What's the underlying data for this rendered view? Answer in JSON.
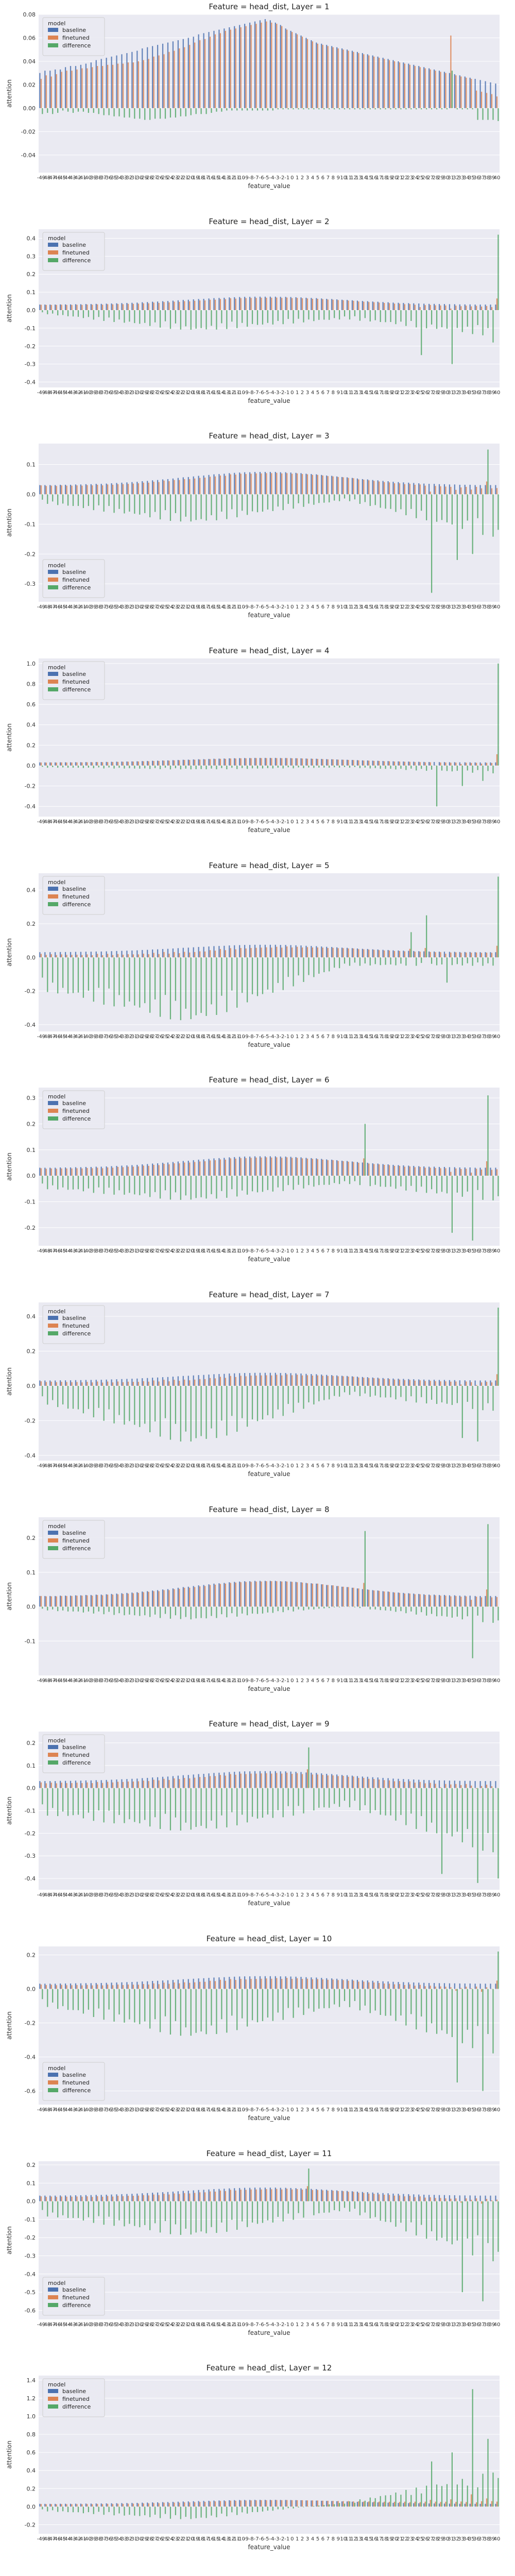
{
  "colors": {
    "baseline": "#4c72b0",
    "finetuned": "#dd8452",
    "difference": "#55a868",
    "plot_bg": "#eaeaf2",
    "grid": "#ffffff"
  },
  "legend_title": "model",
  "legend_items": [
    "baseline",
    "finetuned",
    "difference"
  ],
  "xlabel": "feature_value",
  "ylabel": "attention",
  "chart_data": [
    {
      "type": "bar",
      "title": "Feature = head_dist, Layer = 1",
      "xlabel": "feature_value",
      "ylabel": "attention",
      "legend": "top-left",
      "grid": true,
      "x_range": [
        -49,
        40
      ],
      "ylim": [
        -0.055,
        0.08
      ],
      "yticks": [
        -0.04,
        -0.02,
        0.0,
        0.02,
        0.04,
        0.06,
        0.08
      ],
      "series": [
        {
          "name": "baseline",
          "values": [
            0.03,
            0.032,
            0.032,
            0.033,
            0.033,
            0.035,
            0.036,
            0.036,
            0.037,
            0.038,
            0.039,
            0.041,
            0.042,
            0.043,
            0.044,
            0.045,
            0.046,
            0.047,
            0.048,
            0.049,
            0.051,
            0.052,
            0.053,
            0.054,
            0.055,
            0.056,
            0.057,
            0.058,
            0.059,
            0.06,
            0.061,
            0.063,
            0.064,
            0.065,
            0.066,
            0.067,
            0.068,
            0.069,
            0.07,
            0.071,
            0.072,
            0.073,
            0.074,
            0.075,
            0.076,
            0.075,
            0.073,
            0.071,
            0.068,
            0.066,
            0.064,
            0.062,
            0.06,
            0.058,
            0.056,
            0.055,
            0.054,
            0.053,
            0.052,
            0.051,
            0.05,
            0.049,
            0.048,
            0.047,
            0.046,
            0.045,
            0.044,
            0.043,
            0.042,
            0.041,
            0.04,
            0.039,
            0.038,
            0.037,
            0.036,
            0.035,
            0.034,
            0.033,
            0.032,
            0.031,
            0.03,
            0.029,
            0.028,
            0.027,
            0.026,
            0.025,
            0.024,
            0.023,
            0.022,
            0.021
          ]
        },
        {
          "name": "finetuned",
          "values": [
            0.025,
            0.028,
            0.027,
            0.029,
            0.031,
            0.032,
            0.032,
            0.033,
            0.034,
            0.034,
            0.035,
            0.036,
            0.036,
            0.037,
            0.037,
            0.038,
            0.038,
            0.039,
            0.039,
            0.04,
            0.041,
            0.042,
            0.044,
            0.045,
            0.046,
            0.048,
            0.049,
            0.051,
            0.052,
            0.054,
            0.056,
            0.058,
            0.059,
            0.061,
            0.063,
            0.064,
            0.066,
            0.067,
            0.068,
            0.069,
            0.07,
            0.071,
            0.072,
            0.073,
            0.074,
            0.073,
            0.072,
            0.07,
            0.067,
            0.065,
            0.063,
            0.061,
            0.059,
            0.057,
            0.055,
            0.054,
            0.053,
            0.052,
            0.051,
            0.05,
            0.049,
            0.048,
            0.047,
            0.046,
            0.045,
            0.044,
            0.043,
            0.042,
            0.041,
            0.04,
            0.039,
            0.038,
            0.037,
            0.036,
            0.035,
            0.034,
            0.033,
            0.032,
            0.031,
            0.03,
            0.062,
            0.028,
            0.027,
            0.026,
            0.025,
            0.015,
            0.014,
            0.013,
            0.012,
            0.01
          ]
        },
        {
          "name": "difference",
          "values": [
            -0.005,
            -0.004,
            -0.005,
            -0.004,
            -0.002,
            -0.003,
            -0.004,
            -0.003,
            -0.003,
            -0.004,
            -0.004,
            -0.005,
            -0.006,
            -0.006,
            -0.007,
            -0.007,
            -0.008,
            -0.008,
            -0.009,
            -0.009,
            -0.01,
            -0.01,
            -0.009,
            -0.009,
            -0.009,
            -0.008,
            -0.008,
            -0.007,
            -0.007,
            -0.006,
            -0.005,
            -0.005,
            -0.005,
            -0.004,
            -0.003,
            -0.003,
            -0.002,
            -0.002,
            -0.002,
            -0.002,
            -0.002,
            -0.002,
            -0.002,
            -0.002,
            -0.002,
            -0.002,
            -0.001,
            -0.001,
            -0.001,
            -0.001,
            -0.001,
            -0.001,
            -0.001,
            -0.001,
            -0.001,
            -0.001,
            -0.001,
            -0.001,
            -0.001,
            -0.001,
            -0.001,
            -0.001,
            -0.001,
            -0.001,
            -0.001,
            -0.001,
            -0.001,
            -0.001,
            -0.001,
            -0.001,
            -0.001,
            -0.001,
            -0.001,
            -0.001,
            -0.001,
            -0.001,
            -0.001,
            -0.001,
            -0.001,
            -0.001,
            0.032,
            -0.001,
            -0.001,
            -0.001,
            -0.001,
            -0.01,
            -0.01,
            -0.01,
            -0.01,
            -0.011
          ]
        }
      ]
    },
    {
      "type": "bar",
      "title": "Feature = head_dist, Layer = 2",
      "xlabel": "feature_value",
      "ylabel": "attention",
      "legend": "top-left",
      "grid": true,
      "x_range": [
        -49,
        40
      ],
      "ylim": [
        -0.43,
        0.45
      ],
      "yticks": [
        -0.4,
        -0.3,
        -0.2,
        -0.1,
        0.0,
        0.1,
        0.2,
        0.3,
        0.4
      ],
      "diff_profile": {
        "base": [
          -0.02,
          -0.12,
          -0.05,
          -0.15
        ],
        "spikes": [
          [
            74,
            -0.25
          ],
          [
            80,
            -0.3
          ],
          [
            89,
            0.42
          ],
          [
            88,
            -0.18
          ]
        ]
      }
    },
    {
      "type": "bar",
      "title": "Feature = head_dist, Layer = 3",
      "xlabel": "feature_value",
      "ylabel": "attention",
      "legend": "bottom-left",
      "grid": true,
      "x_range": [
        -49,
        40
      ],
      "ylim": [
        -0.36,
        0.17
      ],
      "yticks": [
        -0.3,
        -0.2,
        -0.1,
        0.0,
        0.1
      ],
      "diff_profile": {
        "base": [
          -0.03,
          -0.1,
          -0.02,
          -0.15
        ],
        "spikes": [
          [
            76,
            -0.33
          ],
          [
            81,
            -0.22
          ],
          [
            87,
            0.15
          ],
          [
            84,
            -0.2
          ]
        ]
      }
    },
    {
      "type": "bar",
      "title": "Feature = head_dist, Layer = 4",
      "xlabel": "feature_value",
      "ylabel": "attention",
      "legend": "top-left",
      "grid": true,
      "x_range": [
        -49,
        40
      ],
      "ylim": [
        -0.5,
        1.05
      ],
      "yticks": [
        -0.4,
        -0.2,
        0.0,
        0.2,
        0.4,
        0.6,
        0.8,
        1.0
      ],
      "diff_profile": {
        "base": [
          -0.02,
          -0.04,
          -0.02,
          -0.08
        ],
        "spikes": [
          [
            77,
            -0.4
          ],
          [
            82,
            -0.2
          ],
          [
            89,
            1.0
          ],
          [
            86,
            -0.15
          ]
        ]
      }
    },
    {
      "type": "bar",
      "title": "Feature = head_dist, Layer = 5",
      "xlabel": "feature_value",
      "ylabel": "attention",
      "legend": "top-left",
      "grid": true,
      "x_range": [
        -49,
        40
      ],
      "ylim": [
        -0.44,
        0.5
      ],
      "yticks": [
        -0.4,
        -0.2,
        0.0,
        0.2,
        0.4
      ],
      "diff_profile": {
        "base": [
          -0.2,
          -0.4,
          -0.05,
          -0.05
        ],
        "spikes": [
          [
            72,
            0.15
          ],
          [
            75,
            0.25
          ],
          [
            79,
            -0.15
          ],
          [
            89,
            0.48
          ]
        ]
      }
    },
    {
      "type": "bar",
      "title": "Feature = head_dist, Layer = 6",
      "xlabel": "feature_value",
      "ylabel": "attention",
      "legend": "top-left",
      "grid": true,
      "x_range": [
        -49,
        40
      ],
      "ylim": [
        -0.27,
        0.34
      ],
      "yticks": [
        -0.2,
        -0.1,
        0.0,
        0.1,
        0.2,
        0.3
      ],
      "diff_profile": {
        "base": [
          -0.05,
          -0.1,
          -0.03,
          -0.1
        ],
        "spikes": [
          [
            63,
            0.2
          ],
          [
            80,
            -0.22
          ],
          [
            84,
            -0.25
          ],
          [
            87,
            0.31
          ]
        ]
      }
    },
    {
      "type": "bar",
      "title": "Feature = head_dist, Layer = 7",
      "xlabel": "feature_value",
      "ylabel": "attention",
      "legend": "top-left",
      "grid": true,
      "x_range": [
        -49,
        40
      ],
      "ylim": [
        -0.43,
        0.48
      ],
      "yticks": [
        -0.4,
        -0.2,
        0.0,
        0.2,
        0.4
      ],
      "diff_profile": {
        "base": [
          -0.1,
          -0.35,
          -0.05,
          -0.15
        ],
        "spikes": [
          [
            82,
            -0.3
          ],
          [
            85,
            -0.32
          ],
          [
            89,
            0.45
          ]
        ]
      }
    },
    {
      "type": "bar",
      "title": "Feature = head_dist, Layer = 8",
      "xlabel": "feature_value",
      "ylabel": "attention",
      "legend": "top-left",
      "grid": true,
      "x_range": [
        -49,
        40
      ],
      "ylim": [
        -0.2,
        0.26
      ],
      "yticks": [
        -0.1,
        0.0,
        0.1,
        0.2
      ],
      "diff_profile": {
        "base": [
          -0.01,
          -0.04,
          0.0,
          -0.05
        ],
        "spikes": [
          [
            63,
            0.22
          ],
          [
            84,
            -0.15
          ],
          [
            87,
            0.24
          ]
        ]
      }
    },
    {
      "type": "bar",
      "title": "Feature = head_dist, Layer = 9",
      "xlabel": "feature_value",
      "ylabel": "attention",
      "legend": "top-left",
      "grid": true,
      "x_range": [
        -49,
        40
      ],
      "ylim": [
        -0.45,
        0.25
      ],
      "yticks": [
        -0.4,
        -0.3,
        -0.2,
        -0.1,
        0.0,
        0.1,
        0.2
      ],
      "diff_profile": {
        "base": [
          -0.12,
          -0.2,
          -0.08,
          -0.3
        ],
        "spikes": [
          [
            52,
            0.18
          ],
          [
            78,
            -0.38
          ],
          [
            85,
            -0.42
          ],
          [
            89,
            -0.4
          ]
        ]
      }
    },
    {
      "type": "bar",
      "title": "Feature = head_dist, Layer = 10",
      "xlabel": "feature_value",
      "ylabel": "attention",
      "legend": "bottom-left",
      "grid": true,
      "x_range": [
        -49,
        40
      ],
      "ylim": [
        -0.68,
        0.25
      ],
      "yticks": [
        -0.6,
        -0.4,
        -0.2,
        0.0,
        0.2
      ],
      "diff_profile": {
        "base": [
          -0.1,
          -0.3,
          -0.1,
          -0.4
        ],
        "spikes": [
          [
            81,
            -0.55
          ],
          [
            86,
            -0.6
          ],
          [
            89,
            0.22
          ]
        ]
      }
    },
    {
      "type": "bar",
      "title": "Feature = head_dist, Layer = 11",
      "xlabel": "feature_value",
      "ylabel": "attention",
      "legend": "bottom-left",
      "grid": true,
      "x_range": [
        -49,
        40
      ],
      "ylim": [
        -0.65,
        0.22
      ],
      "yticks": [
        -0.6,
        -0.5,
        -0.4,
        -0.3,
        -0.2,
        -0.1,
        0.0,
        0.1,
        0.2
      ],
      "diff_profile": {
        "base": [
          -0.08,
          -0.2,
          -0.05,
          -0.35
        ],
        "spikes": [
          [
            52,
            0.18
          ],
          [
            82,
            -0.5
          ],
          [
            86,
            -0.55
          ]
        ]
      }
    },
    {
      "type": "bar",
      "title": "Feature = head_dist, Layer = 12",
      "xlabel": "feature_value",
      "ylabel": "attention",
      "legend": "top-left",
      "grid": true,
      "x_range": [
        -49,
        40
      ],
      "ylim": [
        -0.3,
        1.45
      ],
      "yticks": [
        -0.2,
        0.0,
        0.2,
        0.4,
        0.6,
        0.8,
        1.0,
        1.2,
        1.4
      ],
      "diff_profile": {
        "base": [
          -0.05,
          -0.15,
          0.05,
          0.4
        ],
        "spikes": [
          [
            84,
            1.3
          ],
          [
            87,
            0.75
          ],
          [
            76,
            0.5
          ],
          [
            80,
            0.6
          ]
        ]
      }
    }
  ]
}
